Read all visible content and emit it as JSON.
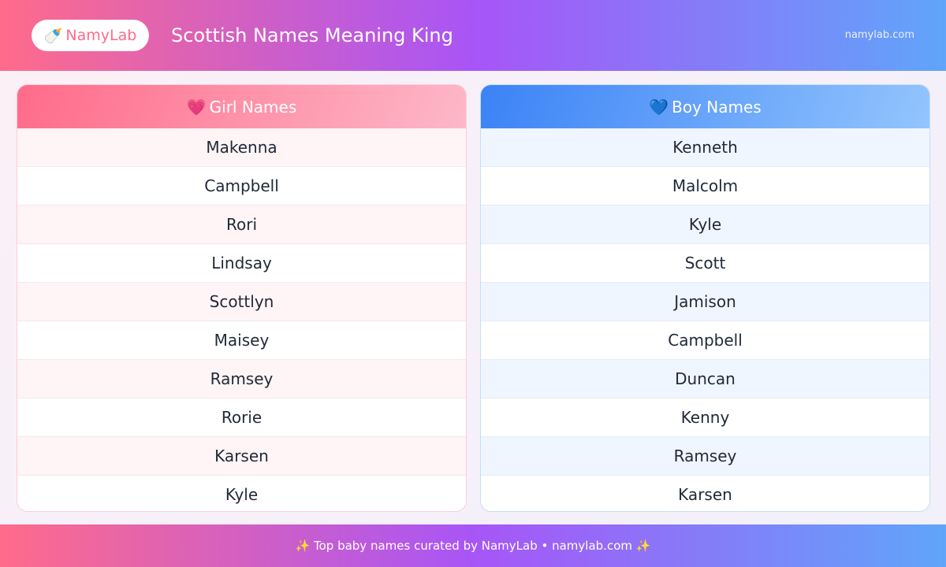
{
  "header": {
    "logo_icon": "baby-bottle-icon",
    "logo_emoji": "🍼",
    "logo": "NamyLab",
    "title": "Scottish Names Meaning King",
    "site": "namylab.com"
  },
  "girl": {
    "icon": "💗",
    "title": "Girl Names",
    "names": [
      "Makenna",
      "Campbell",
      "Rori",
      "Lindsay",
      "Scottlyn",
      "Maisey",
      "Ramsey",
      "Rorie",
      "Karsen",
      "Kyle"
    ]
  },
  "boy": {
    "icon": "💙",
    "title": "Boy Names",
    "names": [
      "Kenneth",
      "Malcolm",
      "Kyle",
      "Scott",
      "Jamison",
      "Campbell",
      "Duncan",
      "Kenny",
      "Ramsey",
      "Karsen"
    ]
  },
  "footer": {
    "text": "✨ Top baby names curated by NamyLab • namylab.com ✨"
  },
  "colors": {
    "pink": "#ff6b8a",
    "purple": "#a855f7",
    "blue": "#60a5fa",
    "boy_header": "#3b82f6"
  }
}
